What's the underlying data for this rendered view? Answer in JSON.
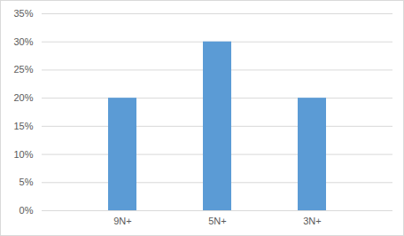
{
  "chart_data": {
    "type": "bar",
    "categories": [
      "9N+",
      "5N+",
      "3N+"
    ],
    "values": [
      20,
      30,
      20
    ],
    "color": "#5b9bd5",
    "ylim": [
      0,
      35
    ],
    "yticks": [
      {
        "value": 0,
        "label": "0%"
      },
      {
        "value": 5,
        "label": "5%"
      },
      {
        "value": 10,
        "label": "10%"
      },
      {
        "value": 15,
        "label": "15%"
      },
      {
        "value": 20,
        "label": "20%"
      },
      {
        "value": 25,
        "label": "25%"
      },
      {
        "value": 30,
        "label": "30%"
      },
      {
        "value": 35,
        "label": "35%"
      }
    ],
    "grid": true
  }
}
